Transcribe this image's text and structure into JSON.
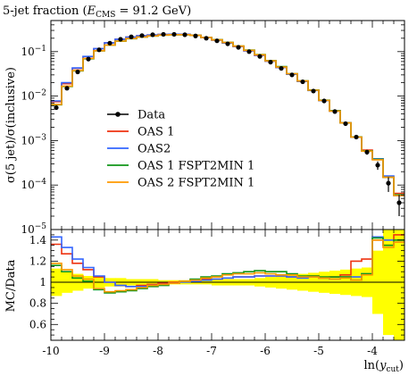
{
  "chart_data": [
    {
      "type": "step",
      "title": "5-jet fraction (E_CMS = 91.2 GeV)",
      "title_parts": {
        "pre": "5-jet fraction (",
        "E": "E",
        "sub": "CMS",
        "post": " = 91.2 GeV)"
      },
      "ylabel": "σ(5 jet)/σ(inclusive)",
      "yscale": "log",
      "ylim": [
        1e-05,
        0.5
      ],
      "xlim": [
        -10,
        -3.4
      ],
      "ytick_labels": [
        {
          "value": 0.1,
          "base": "10",
          "exp": "−1"
        },
        {
          "value": 0.01,
          "base": "10",
          "exp": "−2"
        },
        {
          "value": 0.001,
          "base": "10",
          "exp": "−3"
        },
        {
          "value": 0.0001,
          "base": "10",
          "exp": "−4"
        },
        {
          "value": 1e-05,
          "base": "10",
          "exp": "−5"
        }
      ],
      "bin_edges": [
        -10,
        -9.8,
        -9.6,
        -9.4,
        -9.2,
        -9,
        -8.8,
        -8.6,
        -8.4,
        -8.2,
        -8,
        -7.8,
        -7.6,
        -7.4,
        -7.2,
        -7,
        -6.8,
        -6.6,
        -6.4,
        -6.2,
        -6,
        -5.8,
        -5.6,
        -5.4,
        -5.2,
        -5,
        -4.8,
        -4.6,
        -4.4,
        -4.2,
        -4,
        -3.8,
        -3.6,
        -3.4
      ],
      "data": {
        "name": "Data",
        "color": "#000000",
        "values": [
          0.0055,
          0.015,
          0.035,
          0.068,
          0.11,
          0.155,
          0.19,
          0.215,
          0.23,
          0.24,
          0.245,
          0.245,
          0.24,
          0.225,
          0.2,
          0.175,
          0.15,
          0.125,
          0.1,
          0.078,
          0.058,
          0.042,
          0.03,
          0.021,
          0.013,
          0.0078,
          0.0045,
          0.0024,
          0.0012,
          0.00055,
          0.00028,
          0.00011,
          4e-05
        ],
        "errors": [
          0.0004,
          0.0008,
          0.0015,
          0.002,
          0.003,
          0.004,
          0.004,
          0.004,
          0.004,
          0.004,
          0.004,
          0.004,
          0.004,
          0.004,
          0.004,
          0.004,
          0.003,
          0.003,
          0.003,
          0.002,
          0.002,
          0.0015,
          0.001,
          0.0008,
          0.0006,
          0.0004,
          0.0003,
          0.0002,
          0.00012,
          7e-05,
          6e-05,
          4e-05,
          2e-05
        ]
      },
      "series": [
        {
          "name": "OAS 1",
          "color": "#ee3311",
          "values": [
            0.0075,
            0.019,
            0.042,
            0.077,
            0.116,
            0.158,
            0.19,
            0.213,
            0.228,
            0.236,
            0.243,
            0.245,
            0.243,
            0.232,
            0.207,
            0.182,
            0.157,
            0.13,
            0.104,
            0.082,
            0.061,
            0.044,
            0.031,
            0.0215,
            0.0135,
            0.008,
            0.0047,
            0.0025,
            0.0012,
            0.00061,
            0.00039,
            0.00015,
            6.5e-05
          ]
        },
        {
          "name": "OAS2",
          "color": "#3366ff",
          "values": [
            0.0078,
            0.02,
            0.043,
            0.078,
            0.117,
            0.158,
            0.19,
            0.212,
            0.227,
            0.236,
            0.243,
            0.246,
            0.245,
            0.233,
            0.208,
            0.183,
            0.158,
            0.131,
            0.105,
            0.083,
            0.061,
            0.044,
            0.031,
            0.0215,
            0.0134,
            0.0079,
            0.0046,
            0.0025,
            0.0012,
            0.00058,
            0.00039,
            0.00016,
            5.8e-05
          ]
        },
        {
          "name": "OAS 1 FSPT2MIN 1",
          "color": "#109618",
          "values": [
            0.0064,
            0.0165,
            0.037,
            0.069,
            0.104,
            0.14,
            0.172,
            0.196,
            0.213,
            0.225,
            0.235,
            0.24,
            0.24,
            0.232,
            0.21,
            0.186,
            0.162,
            0.134,
            0.108,
            0.086,
            0.063,
            0.046,
            0.032,
            0.022,
            0.0137,
            0.0081,
            0.0047,
            0.0025,
            0.00121,
            0.00059,
            0.00038,
            0.00015,
            6e-05
          ]
        },
        {
          "name": "OAS 2 FSPT2MIN 1",
          "color": "#ff9900",
          "values": [
            0.0065,
            0.0168,
            0.0375,
            0.07,
            0.105,
            0.141,
            0.173,
            0.197,
            0.214,
            0.226,
            0.236,
            0.241,
            0.241,
            0.232,
            0.209,
            0.185,
            0.161,
            0.133,
            0.107,
            0.085,
            0.062,
            0.045,
            0.032,
            0.022,
            0.0136,
            0.008,
            0.0046,
            0.0025,
            0.0012,
            0.00058,
            0.00037,
            0.00015,
            5.8e-05
          ]
        }
      ],
      "legend": {
        "position": "lower-left",
        "entries": [
          "Data",
          "OAS 1",
          "OAS2",
          "OAS 1 FSPT2MIN 1",
          "OAS 2 FSPT2MIN 1"
        ]
      }
    },
    {
      "type": "step",
      "ylabel": "MC/Data",
      "ylim": [
        0.45,
        1.5
      ],
      "xlim": [
        -10,
        -3.4
      ],
      "yticks": [
        0.6,
        0.8,
        1,
        1.2,
        1.4
      ],
      "ytick_labels": [
        "0.6",
        "0.8",
        "1",
        "1.2",
        "1.4"
      ],
      "xticks": [
        -10,
        -9,
        -8,
        -7,
        -6,
        -5,
        -4
      ],
      "xtick_labels": [
        "-10",
        "-9",
        "-8",
        "-7",
        "-6",
        "-5",
        "-4"
      ],
      "xlabel_parts": {
        "pre": "ln(",
        "var": "y",
        "sub": "cut",
        "post": ")"
      },
      "uncertainty_band": {
        "color": "#ffff00",
        "low": [
          0.87,
          0.9,
          0.92,
          0.94,
          0.95,
          0.96,
          0.96,
          0.97,
          0.97,
          0.97,
          0.98,
          0.98,
          0.98,
          0.98,
          0.98,
          0.97,
          0.97,
          0.97,
          0.97,
          0.96,
          0.95,
          0.94,
          0.93,
          0.92,
          0.91,
          0.9,
          0.89,
          0.88,
          0.87,
          0.86,
          0.7,
          0.5,
          0.45
        ],
        "high": [
          1.13,
          1.1,
          1.08,
          1.06,
          1.05,
          1.04,
          1.04,
          1.03,
          1.03,
          1.03,
          1.02,
          1.02,
          1.02,
          1.02,
          1.02,
          1.03,
          1.03,
          1.03,
          1.03,
          1.04,
          1.05,
          1.06,
          1.07,
          1.08,
          1.09,
          1.1,
          1.11,
          1.12,
          1.13,
          1.14,
          1.3,
          1.5,
          1.5
        ]
      },
      "series": [
        {
          "name": "OAS 1",
          "color": "#ee3311",
          "values": [
            1.36,
            1.27,
            1.18,
            1.12,
            1.05,
            1.0,
            0.97,
            0.96,
            0.97,
            0.98,
            0.99,
            1.0,
            1.01,
            1.02,
            1.03,
            1.03,
            1.04,
            1.05,
            1.05,
            1.06,
            1.06,
            1.06,
            1.05,
            1.05,
            1.06,
            1.04,
            1.05,
            1.07,
            1.2,
            1.22,
            1.4,
            1.35,
            1.45
          ]
        },
        {
          "name": "OAS2",
          "color": "#3366ff",
          "values": [
            1.43,
            1.33,
            1.22,
            1.14,
            1.06,
            1.0,
            0.97,
            0.96,
            0.96,
            0.97,
            0.98,
            0.99,
            1.0,
            1.01,
            1.02,
            1.03,
            1.04,
            1.05,
            1.05,
            1.06,
            1.06,
            1.06,
            1.05,
            1.04,
            1.05,
            1.04,
            1.03,
            1.05,
            1.05,
            1.08,
            1.43,
            1.4,
            1.38
          ]
        },
        {
          "name": "OAS 1 FSPT2MIN 1",
          "color": "#109618",
          "values": [
            1.16,
            1.1,
            1.04,
            1.01,
            0.93,
            0.9,
            0.91,
            0.92,
            0.94,
            0.96,
            0.97,
            0.99,
            1.01,
            1.03,
            1.05,
            1.06,
            1.08,
            1.09,
            1.1,
            1.11,
            1.1,
            1.1,
            1.08,
            1.06,
            1.06,
            1.05,
            1.05,
            1.05,
            1.02,
            1.08,
            1.42,
            1.35,
            1.4
          ]
        },
        {
          "name": "OAS 2 FSPT2MIN 1",
          "color": "#ff9900",
          "values": [
            1.18,
            1.12,
            1.06,
            1.03,
            0.94,
            0.91,
            0.92,
            0.93,
            0.95,
            0.97,
            0.98,
            0.99,
            1.01,
            1.02,
            1.04,
            1.05,
            1.07,
            1.08,
            1.08,
            1.09,
            1.08,
            1.07,
            1.07,
            1.05,
            1.05,
            1.04,
            1.03,
            1.04,
            1.02,
            1.07,
            1.4,
            1.33,
            1.38
          ]
        }
      ]
    }
  ]
}
